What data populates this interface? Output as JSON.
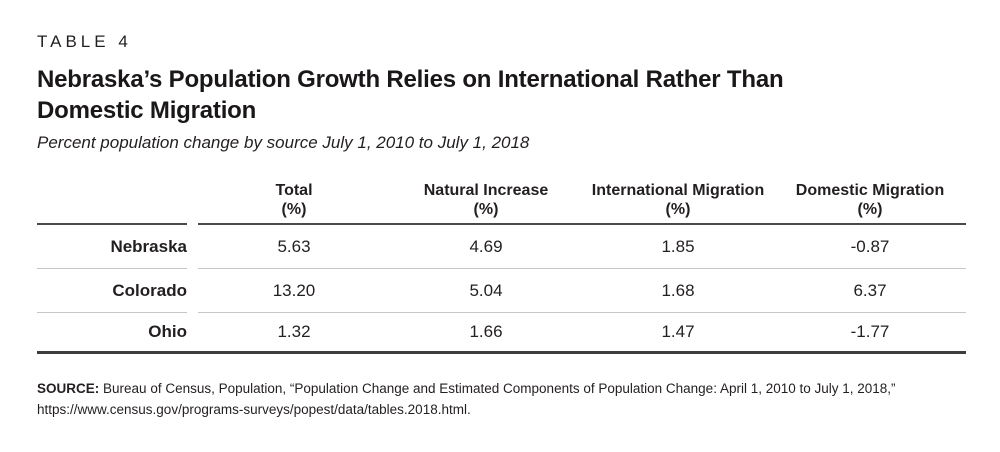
{
  "header": {
    "table_label": "TABLE 4",
    "title_line1": "Nebraska’s Population Growth Relies on International Rather Than",
    "title_line2": "Domestic Migration",
    "subtitle": "Percent population change by source July 1, 2010 to July 1, 2018"
  },
  "table": {
    "columns": [
      {
        "name": "Total",
        "unit": "(%)"
      },
      {
        "name": "Natural Increase",
        "unit": "(%)"
      },
      {
        "name": "International Migration",
        "unit": "(%)"
      },
      {
        "name": "Domestic Migration",
        "unit": "(%)"
      }
    ],
    "rows": [
      {
        "label": "Nebraska",
        "values": [
          "5.63",
          "4.69",
          "1.85",
          "-0.87"
        ]
      },
      {
        "label": "Colorado",
        "values": [
          "13.20",
          "5.04",
          "1.68",
          "6.37"
        ]
      },
      {
        "label": "Ohio",
        "values": [
          "1.32",
          "1.66",
          "1.47",
          "-1.77"
        ]
      }
    ]
  },
  "source": {
    "label": "SOURCE:",
    "text": "Bureau of Census, Population, “Population Change and Estimated Components of Population Change: April 1, 2010 to July 1, 2018,” https://www.census.gov/programs-surveys/popest/data/tables.2018.html."
  },
  "colors": {
    "text": "#231f20",
    "rule_header": "#4a4a4a",
    "rule_row": "#c6c6c6",
    "rule_bottom": "#3d3d3d",
    "background": "#ffffff"
  },
  "chart_data": {
    "type": "table",
    "table_label": "TABLE 4",
    "title": "Nebraska’s Population Growth Relies on International Rather Than Domestic Migration",
    "subtitle": "Percent population change by source July 1, 2010 to July 1, 2018",
    "columns": [
      "Total (%)",
      "Natural Increase (%)",
      "International Migration (%)",
      "Domestic Migration (%)"
    ],
    "rows": [
      {
        "label": "Nebraska",
        "values": [
          5.63,
          4.69,
          1.85,
          -0.87
        ]
      },
      {
        "label": "Colorado",
        "values": [
          13.2,
          5.04,
          1.68,
          6.37
        ]
      },
      {
        "label": "Ohio",
        "values": [
          1.32,
          1.66,
          1.47,
          -1.77
        ]
      }
    ],
    "source": "Bureau of Census, Population, “Population Change and Estimated Components of Population Change: April 1, 2010 to July 1, 2018,” https://www.census.gov/programs-surveys/popest/data/tables.2018.html."
  }
}
